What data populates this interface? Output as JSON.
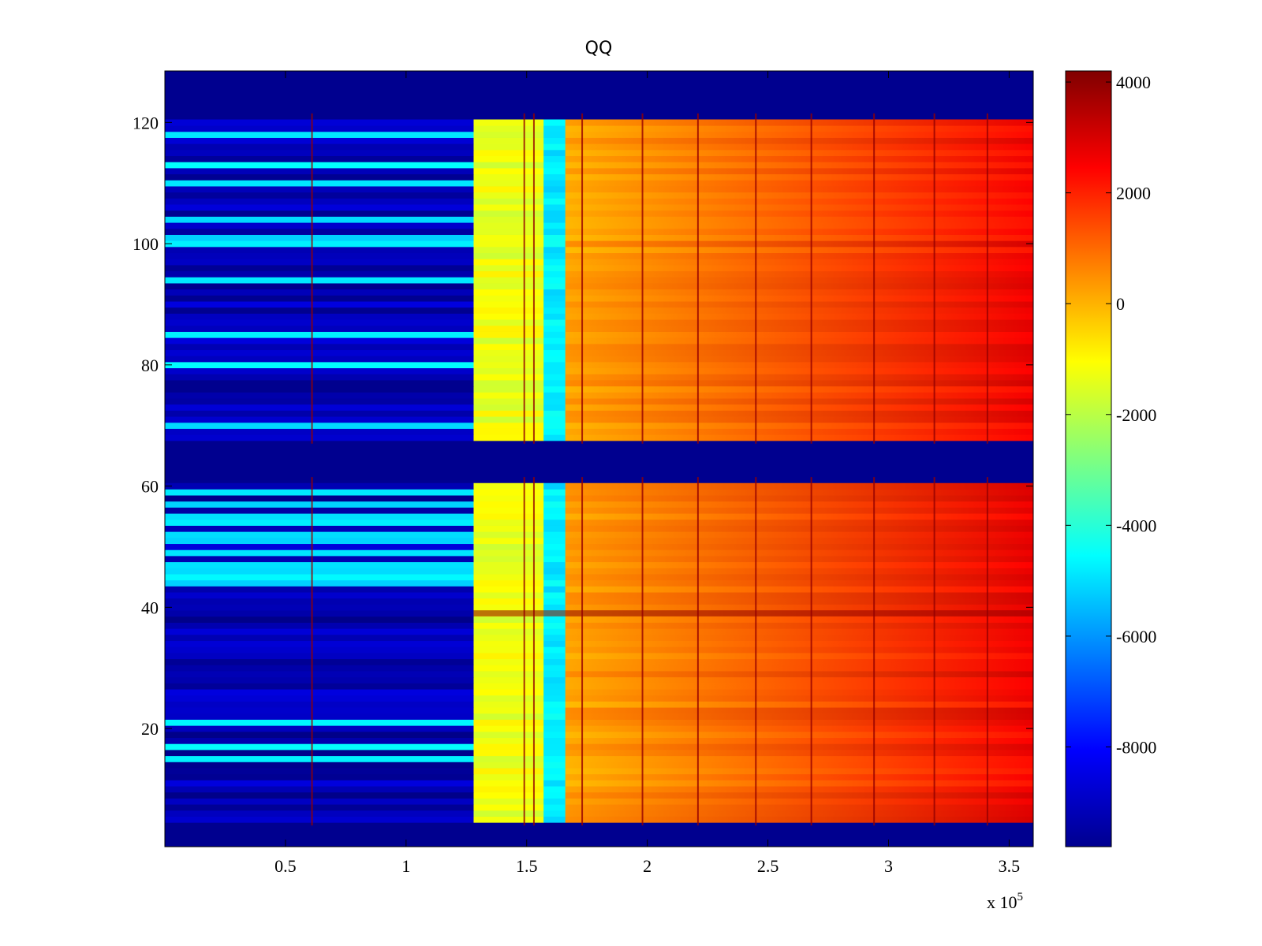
{
  "chart_data": {
    "type": "heatmap",
    "title": "QQ",
    "xlabel": "",
    "ylabel": "",
    "x_multiplier_label": {
      "base": "x 10",
      "exponent": "5"
    },
    "xlim": [
      0,
      360000
    ],
    "ylim": [
      1,
      128
    ],
    "x_ticks": [
      50000,
      100000,
      150000,
      200000,
      250000,
      300000,
      350000
    ],
    "x_tick_labels": [
      "0.5",
      "1",
      "1.5",
      "2",
      "2.5",
      "3",
      "3.5"
    ],
    "y_ticks": [
      20,
      40,
      60,
      80,
      100,
      120
    ],
    "y_tick_labels": [
      "20",
      "40",
      "60",
      "80",
      "100",
      "120"
    ],
    "colormap": "jet",
    "clim": [
      -9800,
      4200
    ],
    "colorbar_ticks": [
      4000,
      2000,
      0,
      -2000,
      -4000,
      -6000,
      -8000
    ],
    "colorbar_tick_labels": [
      "4000",
      "2000",
      "0",
      "-2000",
      "-4000",
      "-6000",
      "-8000"
    ],
    "colorbar_location": "right",
    "empty_row_bands": [
      [
        1,
        4
      ],
      [
        61,
        67
      ],
      [
        121,
        128
      ]
    ],
    "regions": [
      {
        "x_range": [
          0,
          128000
        ],
        "value": -8500,
        "note": "blue rows"
      },
      {
        "x_range": [
          128000,
          157000
        ],
        "value": -1300
      },
      {
        "x_range": [
          157000,
          166000
        ],
        "value": -4800
      },
      {
        "x_range": [
          166000,
          360000
        ],
        "value_start": 200,
        "value_end": 2600
      }
    ],
    "streak_row": {
      "y": 39,
      "x_range": [
        128000,
        360000
      ],
      "value": 4000
    },
    "vertical_lines_x": [
      61000,
      149000,
      153000,
      173000,
      198000,
      221000,
      245000,
      268000,
      294000,
      319000,
      341000
    ]
  }
}
